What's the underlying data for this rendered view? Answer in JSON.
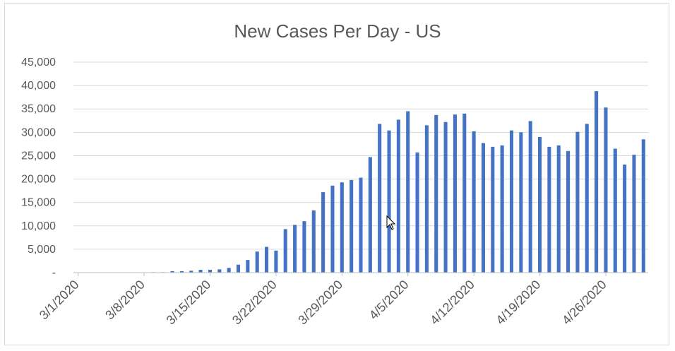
{
  "chart_data": {
    "type": "bar",
    "title": "New Cases Per Day - US",
    "xlabel": "",
    "ylabel": "",
    "ylim": [
      0,
      45000
    ],
    "y_ticks": [
      "-",
      "5,000",
      "10,000",
      "15,000",
      "20,000",
      "25,000",
      "30,000",
      "35,000",
      "40,000",
      "45,000"
    ],
    "x_tick_labels": [
      "3/1/2020",
      "3/8/2020",
      "3/15/2020",
      "3/22/2020",
      "3/29/2020",
      "4/5/2020",
      "4/12/2020",
      "4/19/2020",
      "4/26/2020"
    ],
    "x_tick_every": 7,
    "grid": true,
    "legend": "none",
    "bar_color": "#4472c4",
    "categories": [
      "3/1/2020",
      "3/2/2020",
      "3/3/2020",
      "3/4/2020",
      "3/5/2020",
      "3/6/2020",
      "3/7/2020",
      "3/8/2020",
      "3/9/2020",
      "3/10/2020",
      "3/11/2020",
      "3/12/2020",
      "3/13/2020",
      "3/14/2020",
      "3/15/2020",
      "3/16/2020",
      "3/17/2020",
      "3/18/2020",
      "3/19/2020",
      "3/20/2020",
      "3/21/2020",
      "3/22/2020",
      "3/23/2020",
      "3/24/2020",
      "3/25/2020",
      "3/26/2020",
      "3/27/2020",
      "3/28/2020",
      "3/29/2020",
      "3/30/2020",
      "3/31/2020",
      "4/1/2020",
      "4/2/2020",
      "4/3/2020",
      "4/4/2020",
      "4/5/2020",
      "4/6/2020",
      "4/7/2020",
      "4/8/2020",
      "4/9/2020",
      "4/10/2020",
      "4/11/2020",
      "4/12/2020",
      "4/13/2020",
      "4/14/2020",
      "4/15/2020",
      "4/16/2020",
      "4/17/2020",
      "4/18/2020",
      "4/19/2020",
      "4/20/2020",
      "4/21/2020",
      "4/22/2020",
      "4/23/2020",
      "4/24/2020",
      "4/25/2020",
      "4/26/2020",
      "4/27/2020",
      "4/28/2020",
      "4/29/2020",
      "4/30/2020"
    ],
    "values": [
      0,
      0,
      0,
      0,
      0,
      0,
      0,
      0,
      100,
      100,
      300,
      300,
      400,
      600,
      600,
      700,
      1000,
      1700,
      2700,
      4500,
      5500,
      4700,
      9300,
      10200,
      11000,
      13300,
      17200,
      18600,
      19300,
      19800,
      20300,
      24700,
      31800,
      30400,
      32700,
      34500,
      25700,
      31500,
      33700,
      32200,
      33800,
      34000,
      30200,
      27700,
      26900,
      27200,
      30400,
      30000,
      32400,
      29000,
      26900,
      27200,
      26000,
      30100,
      31800,
      38800,
      35300,
      26500,
      23100,
      25200,
      28500
    ]
  }
}
